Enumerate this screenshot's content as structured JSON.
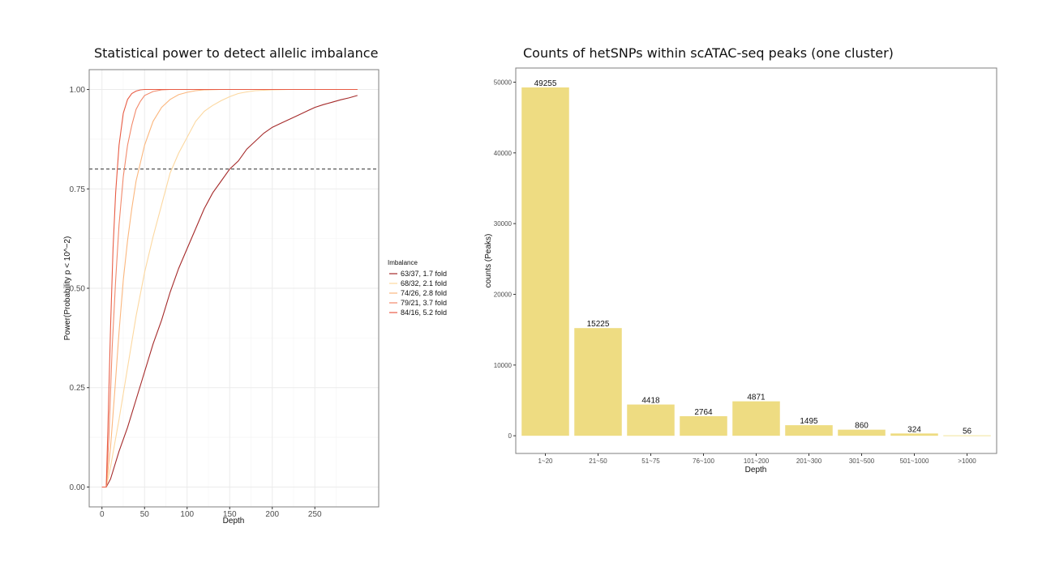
{
  "colors": {
    "panel_border": "#7f7f7f",
    "grid": "#ebebeb",
    "bar_fill": "#eedc82",
    "threshold_line": "#555555"
  },
  "chart_data": [
    {
      "type": "line",
      "title": "Statistical power to detect allelic imbalance",
      "xlabel": "Depth",
      "ylabel": "Power(Probability p < 10^−2)",
      "xlim": [
        -15,
        325
      ],
      "ylim": [
        -0.05,
        1.05
      ],
      "x_ticks": [
        0,
        50,
        100,
        150,
        200,
        250
      ],
      "x_tick_labels": [
        "0",
        "50",
        "100",
        "150",
        "200",
        "250"
      ],
      "y_ticks": [
        0,
        0.25,
        0.5,
        0.75,
        1.0
      ],
      "y_tick_labels": [
        "0.00",
        "0.25",
        "0.50",
        "0.75",
        "1.00"
      ],
      "threshold": 0.8,
      "legend_title": "Imbalance",
      "legend_position": "right",
      "series": [
        {
          "name": "63/37, 1.7 fold",
          "color": "#a52a2a",
          "x": [
            0,
            5,
            10,
            20,
            30,
            40,
            50,
            60,
            70,
            80,
            90,
            100,
            110,
            120,
            130,
            140,
            150,
            160,
            170,
            180,
            190,
            200,
            210,
            220,
            230,
            240,
            250,
            260,
            270,
            280,
            290,
            300
          ],
          "y": [
            0,
            0,
            0.02,
            0.09,
            0.15,
            0.22,
            0.29,
            0.36,
            0.42,
            0.49,
            0.55,
            0.6,
            0.65,
            0.7,
            0.74,
            0.77,
            0.8,
            0.82,
            0.85,
            0.87,
            0.89,
            0.905,
            0.915,
            0.925,
            0.935,
            0.945,
            0.955,
            0.962,
            0.968,
            0.974,
            0.979,
            0.985
          ]
        },
        {
          "name": "68/32, 2.1 fold",
          "color": "#fcd8a0",
          "x": [
            0,
            5,
            10,
            15,
            20,
            30,
            40,
            50,
            60,
            70,
            80,
            90,
            100,
            110,
            120,
            130,
            140,
            150,
            160,
            170,
            180,
            200,
            220,
            250,
            300
          ],
          "y": [
            0,
            0,
            0.05,
            0.11,
            0.17,
            0.3,
            0.43,
            0.54,
            0.63,
            0.71,
            0.79,
            0.84,
            0.88,
            0.92,
            0.945,
            0.96,
            0.972,
            0.982,
            0.99,
            0.994,
            0.997,
            0.999,
            1.0,
            1.0,
            1.0
          ]
        },
        {
          "name": "74/26, 2.8 fold",
          "color": "#fbb77e",
          "x": [
            0,
            5,
            10,
            15,
            20,
            25,
            30,
            35,
            40,
            50,
            60,
            70,
            80,
            90,
            100,
            110,
            120,
            140,
            160,
            200,
            250,
            300
          ],
          "y": [
            0,
            0,
            0.1,
            0.24,
            0.39,
            0.52,
            0.62,
            0.7,
            0.77,
            0.86,
            0.92,
            0.955,
            0.975,
            0.987,
            0.993,
            0.997,
            0.999,
            1.0,
            1.0,
            1.0,
            1.0,
            1.0
          ]
        },
        {
          "name": "79/21, 3.7 fold",
          "color": "#f2896b",
          "x": [
            0,
            5,
            8,
            12,
            16,
            20,
            25,
            30,
            35,
            40,
            45,
            50,
            60,
            70,
            80,
            100,
            150,
            200,
            250,
            300
          ],
          "y": [
            0,
            0,
            0.12,
            0.35,
            0.52,
            0.66,
            0.78,
            0.86,
            0.91,
            0.95,
            0.97,
            0.985,
            0.995,
            0.999,
            1.0,
            1.0,
            1.0,
            1.0,
            1.0,
            1.0
          ]
        },
        {
          "name": "84/16, 5.2 fold",
          "color": "#e85c45",
          "x": [
            0,
            5,
            7,
            10,
            13,
            16,
            20,
            25,
            30,
            35,
            40,
            45,
            50,
            60,
            80,
            100,
            150,
            200,
            250,
            300
          ],
          "y": [
            0,
            0,
            0.15,
            0.4,
            0.6,
            0.74,
            0.86,
            0.94,
            0.975,
            0.99,
            0.996,
            0.999,
            1.0,
            1.0,
            1.0,
            1.0,
            1.0,
            1.0,
            1.0,
            1.0
          ]
        }
      ]
    },
    {
      "type": "bar",
      "title": "Counts of hetSNPs within scATAC-seq peaks (one cluster)",
      "xlabel": "Depth",
      "ylabel": "counts (Peaks)",
      "categories": [
        "1~20",
        "21~50",
        "51~75",
        "76~100",
        "101~200",
        "201~300",
        "301~500",
        "501~1000",
        ">1000"
      ],
      "values": [
        49255,
        15225,
        4418,
        2764,
        4871,
        1495,
        860,
        324,
        56
      ],
      "value_labels": [
        "49255",
        "15225",
        "4418",
        "2764",
        "4871",
        "1495",
        "860",
        "324",
        "56"
      ],
      "ylim": [
        -2500,
        52000
      ],
      "y_ticks": [
        0,
        10000,
        20000,
        30000,
        40000,
        50000
      ],
      "y_tick_labels": [
        "0",
        "10000",
        "20000",
        "30000",
        "40000",
        "50000"
      ]
    }
  ]
}
